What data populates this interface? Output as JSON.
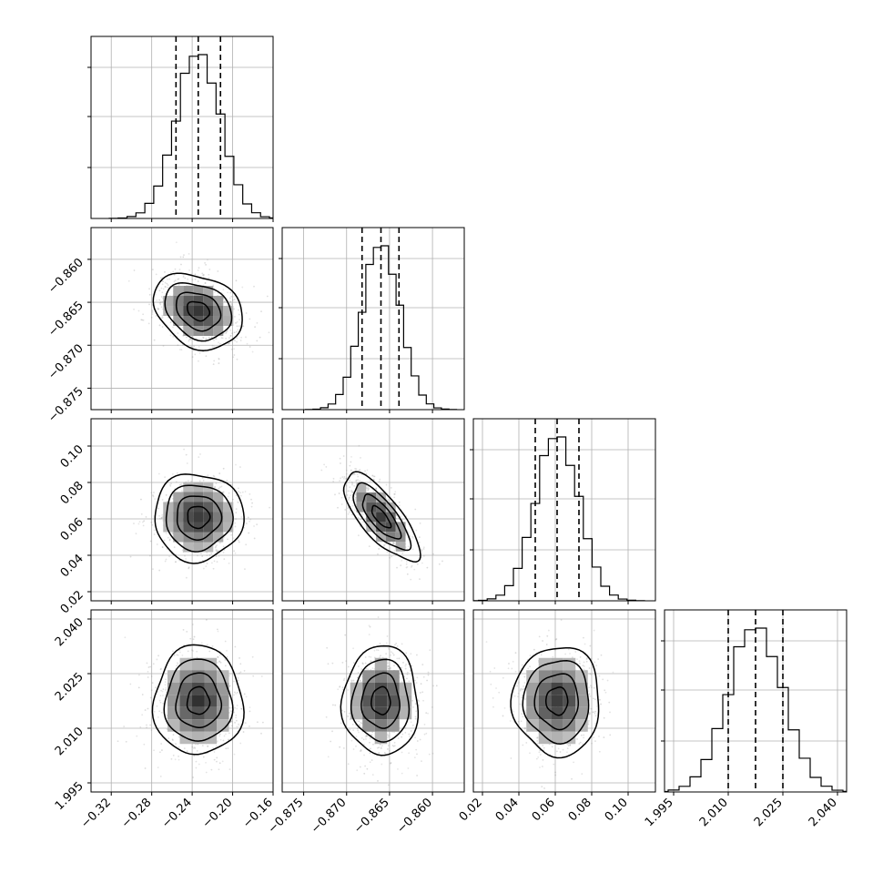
{
  "colors": {
    "line": "#000000",
    "grid": "#b0b0b0",
    "points": "#808080",
    "background": "#ffffff"
  },
  "chart_data": {
    "type": "corner",
    "grid": true,
    "dimensions": [
      {
        "xlim": [
          -0.34,
          -0.16
        ],
        "ylim": [
          -0.8775,
          -0.8563
        ],
        "xticks": [
          -0.32,
          -0.28,
          -0.24,
          -0.2,
          -0.16
        ],
        "xtick_labels": [
          "−0.32",
          "−0.28",
          "−0.24",
          "−0.20",
          "−0.16"
        ],
        "yticks": [
          -0.875,
          -0.87,
          -0.865,
          -0.86
        ],
        "ytick_labels": [
          "−0.875",
          "−0.870",
          "−0.865",
          "−0.860"
        ],
        "quantiles": [
          -0.256,
          -0.234,
          -0.212
        ],
        "mean": -0.234,
        "sd": 0.022
      },
      {
        "xlim": [
          -0.8775,
          -0.8563
        ],
        "ylim": [
          0.015,
          0.115
        ],
        "xticks": [
          -0.875,
          -0.87,
          -0.865,
          -0.86
        ],
        "xtick_labels": [
          "−0.875",
          "−0.870",
          "−0.865",
          "−0.860"
        ],
        "yticks": [
          0.02,
          0.04,
          0.06,
          0.08,
          0.1
        ],
        "ytick_labels": [
          "0.02",
          "0.04",
          "0.06",
          "0.08",
          "0.10"
        ],
        "quantiles": [
          -0.8682,
          -0.866,
          -0.8639
        ],
        "mean": -0.866,
        "sd": 0.0022
      },
      {
        "xlim": [
          0.015,
          0.115
        ],
        "ylim": [
          1.9925,
          2.0425
        ],
        "xticks": [
          0.02,
          0.04,
          0.06,
          0.08,
          0.1
        ],
        "xtick_labels": [
          "0.02",
          "0.04",
          "0.06",
          "0.08",
          "0.10"
        ],
        "yticks": [
          1.995,
          2.01,
          2.025,
          2.04
        ],
        "ytick_labels": [
          "1.995",
          "2.010",
          "2.025",
          "2.040"
        ],
        "quantiles": [
          0.049,
          0.061,
          0.073
        ],
        "mean": 0.061,
        "sd": 0.012
      },
      {
        "xlim": [
          1.9925,
          2.0425
        ],
        "xticks": [
          1.995,
          2.01,
          2.025,
          2.04
        ],
        "xtick_labels": [
          "1.995",
          "2.010",
          "2.025",
          "2.040"
        ],
        "quantiles": [
          2.01,
          2.0175,
          2.025
        ],
        "mean": 2.0175,
        "sd": 0.0075
      }
    ],
    "correlations": [
      {
        "row": 1,
        "col": 0,
        "r": -0.25
      },
      {
        "row": 2,
        "col": 0,
        "r": 0.0
      },
      {
        "row": 2,
        "col": 1,
        "r": -0.75
      },
      {
        "row": 3,
        "col": 0,
        "r": 0.0
      },
      {
        "row": 3,
        "col": 1,
        "r": 0.0
      },
      {
        "row": 3,
        "col": 2,
        "r": 0.0
      }
    ],
    "histogram_bins": 20,
    "contour_levels_sigma": [
      0.5,
      1.0,
      1.5,
      2.0
    ]
  }
}
